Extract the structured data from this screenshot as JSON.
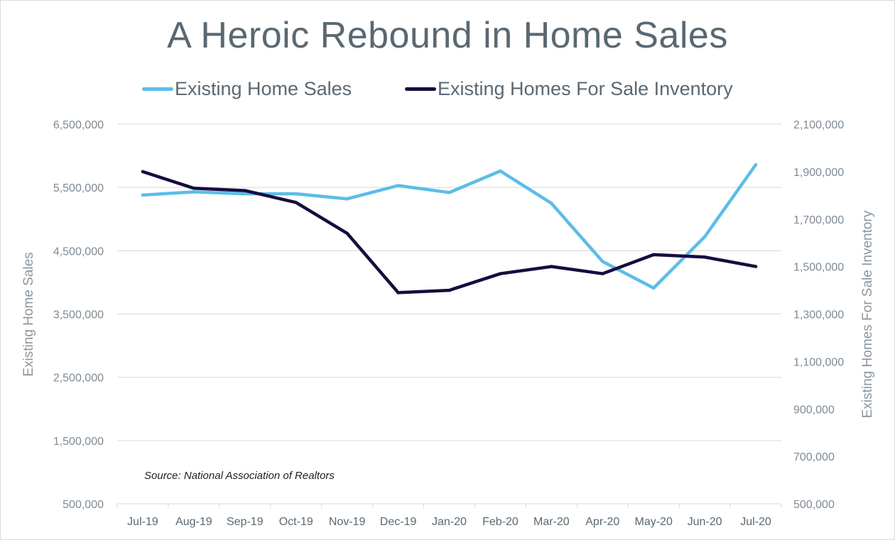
{
  "chart_data": {
    "type": "line",
    "title": "A Heroic Rebound in Home Sales",
    "categories": [
      "Jul-19",
      "Aug-19",
      "Sep-19",
      "Oct-19",
      "Nov-19",
      "Dec-19",
      "Jan-20",
      "Feb-20",
      "Mar-20",
      "Apr-20",
      "May-20",
      "Jun-20",
      "Jul-20"
    ],
    "series": [
      {
        "name": "Existing Home Sales",
        "axis": "left",
        "color": "#5bbde7",
        "values": [
          5380000,
          5430000,
          5400000,
          5400000,
          5320000,
          5530000,
          5420000,
          5760000,
          5250000,
          4330000,
          3910000,
          4720000,
          5860000
        ]
      },
      {
        "name": "Existing Homes For Sale Inventory",
        "axis": "right",
        "color": "#170c3e",
        "values": [
          1900000,
          1830000,
          1820000,
          1770000,
          1640000,
          1390000,
          1400000,
          1470000,
          1500000,
          1470000,
          1550000,
          1540000,
          1500000
        ]
      }
    ],
    "ylabel": "Existing Home Sales",
    "ylim": [
      500000,
      6500000
    ],
    "yticks": [
      "6,500,000",
      "5,500,000",
      "4,500,000",
      "3,500,000",
      "2,500,000",
      "1,500,000",
      "500,000"
    ],
    "y2label": "Existing Homes For Sale Inventory",
    "y2lim": [
      500000,
      2100000
    ],
    "y2ticks": [
      "2,100,000",
      "1,900,000",
      "1,700,000",
      "1,500,000",
      "1,300,000",
      "1,100,000",
      "900,000",
      "700,000",
      "500,000"
    ],
    "grid": true,
    "legend": "top-center",
    "annotation": "Source: National Association of Realtors"
  }
}
